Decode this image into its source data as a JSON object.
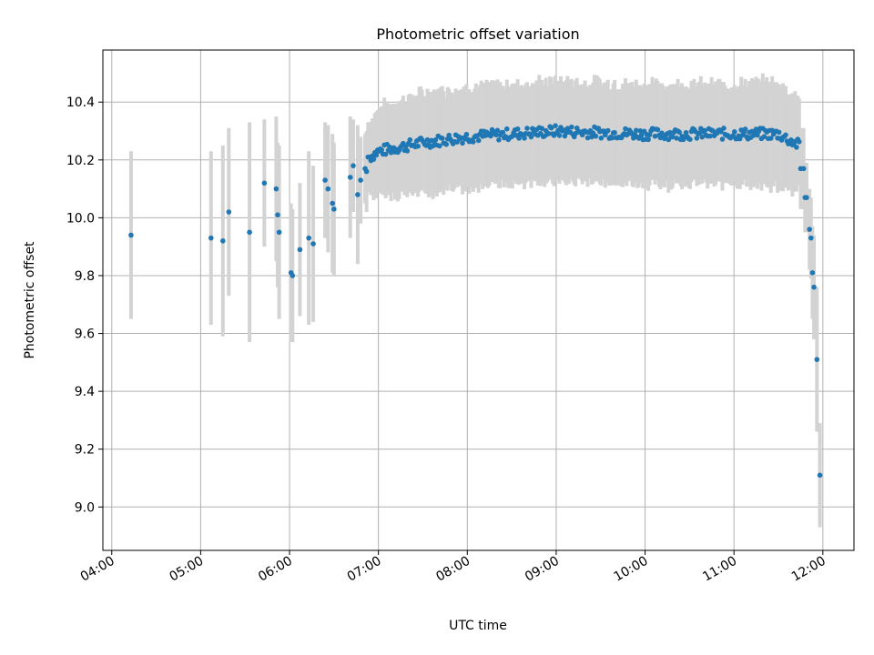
{
  "chart_data": {
    "type": "scatter",
    "title": "Photometric offset variation",
    "xlabel": "UTC time",
    "ylabel": "Photometric offset",
    "x_ticks": [
      "04:00",
      "05:00",
      "06:00",
      "07:00",
      "08:00",
      "09:00",
      "10:00",
      "11:00",
      "12:00"
    ],
    "y_ticks": [
      "9.0",
      "9.2",
      "9.4",
      "9.6",
      "9.8",
      "10.0",
      "10.2",
      "10.4"
    ],
    "xlim": [
      "03:54",
      "12:21"
    ],
    "ylim": [
      8.85,
      10.58
    ],
    "grid": true,
    "colors": {
      "points": "#1f77b4",
      "error_bars": "#d3d3d3"
    },
    "points_explicit": [
      {
        "t": "04:13",
        "y": 9.94,
        "err": 0.29
      },
      {
        "t": "05:07",
        "y": 9.93,
        "err": 0.3
      },
      {
        "t": "05:15",
        "y": 9.92,
        "err": 0.33
      },
      {
        "t": "05:19",
        "y": 10.02,
        "err": 0.29
      },
      {
        "t": "05:33",
        "y": 9.95,
        "err": 0.38
      },
      {
        "t": "05:43",
        "y": 10.12,
        "err": 0.22
      },
      {
        "t": "05:51",
        "y": 10.1,
        "err": 0.25
      },
      {
        "t": "05:52",
        "y": 10.01,
        "err": 0.25
      },
      {
        "t": "05:53",
        "y": 9.95,
        "err": 0.3
      },
      {
        "t": "06:01",
        "y": 9.81,
        "err": 0.24
      },
      {
        "t": "06:02",
        "y": 9.8,
        "err": 0.23
      },
      {
        "t": "06:07",
        "y": 9.89,
        "err": 0.23
      },
      {
        "t": "06:13",
        "y": 9.93,
        "err": 0.3
      },
      {
        "t": "06:16",
        "y": 9.91,
        "err": 0.27
      },
      {
        "t": "06:24",
        "y": 10.13,
        "err": 0.2
      },
      {
        "t": "06:26",
        "y": 10.1,
        "err": 0.22
      },
      {
        "t": "06:29",
        "y": 10.05,
        "err": 0.24
      },
      {
        "t": "06:30",
        "y": 10.03,
        "err": 0.23
      },
      {
        "t": "06:41",
        "y": 10.14,
        "err": 0.21
      },
      {
        "t": "06:43",
        "y": 10.18,
        "err": 0.16
      },
      {
        "t": "06:46",
        "y": 10.08,
        "err": 0.24
      },
      {
        "t": "06:48",
        "y": 10.13,
        "err": 0.15
      },
      {
        "t": "06:51",
        "y": 10.17,
        "err": 0.12
      },
      {
        "t": "06:52",
        "y": 10.16,
        "err": 0.14
      },
      {
        "t": "06:53",
        "y": 10.21,
        "err": 0.12
      },
      {
        "t": "11:45",
        "y": 10.17,
        "err": 0.14
      },
      {
        "t": "11:47",
        "y": 10.17,
        "err": 0.14
      },
      {
        "t": "11:48",
        "y": 10.07,
        "err": 0.12
      },
      {
        "t": "11:49",
        "y": 10.07,
        "err": 0.12
      },
      {
        "t": "11:51",
        "y": 9.96,
        "err": 0.14
      },
      {
        "t": "11:52",
        "y": 9.93,
        "err": 0.14
      },
      {
        "t": "11:53",
        "y": 9.81,
        "err": 0.16
      },
      {
        "t": "11:54",
        "y": 9.76,
        "err": 0.18
      },
      {
        "t": "11:56",
        "y": 9.51,
        "err": 0.25
      },
      {
        "t": "11:58",
        "y": 9.11,
        "err": 0.18
      }
    ],
    "dense_segment": {
      "t_start": "06:54",
      "t_end": "11:44",
      "points_per_hour": 66,
      "trend": [
        {
          "t": "06:54",
          "y": 10.21,
          "err": 0.12
        },
        {
          "t": "07:00",
          "y": 10.23,
          "err": 0.15
        },
        {
          "t": "07:30",
          "y": 10.26,
          "err": 0.17
        },
        {
          "t": "08:00",
          "y": 10.28,
          "err": 0.17
        },
        {
          "t": "09:00",
          "y": 10.3,
          "err": 0.17
        },
        {
          "t": "10:00",
          "y": 10.29,
          "err": 0.17
        },
        {
          "t": "11:00",
          "y": 10.29,
          "err": 0.17
        },
        {
          "t": "11:30",
          "y": 10.29,
          "err": 0.18
        },
        {
          "t": "11:44",
          "y": 10.25,
          "err": 0.16
        }
      ],
      "scatter": 0.02
    }
  }
}
